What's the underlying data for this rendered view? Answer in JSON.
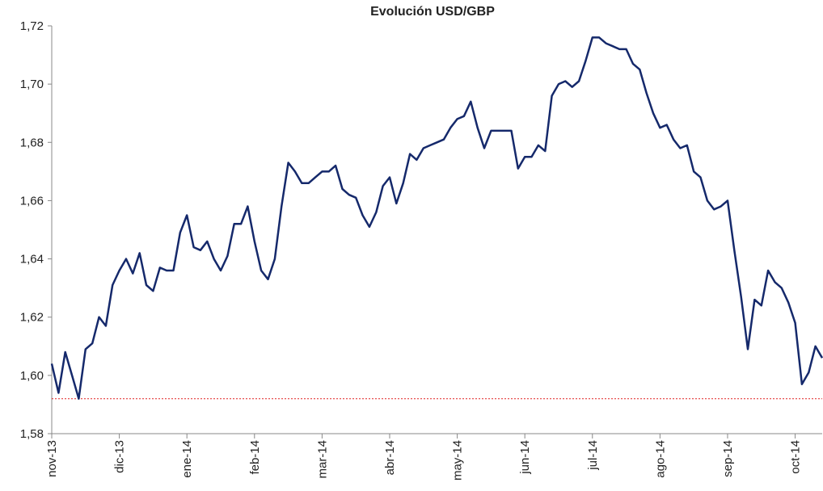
{
  "chart_data": {
    "type": "line",
    "title": "Evolución USD/GBP",
    "categories": [
      "nov-13",
      null,
      null,
      null,
      null,
      null,
      null,
      null,
      null,
      null,
      "dic-13",
      null,
      null,
      null,
      null,
      null,
      null,
      null,
      null,
      null,
      "ene-14",
      null,
      null,
      null,
      null,
      null,
      null,
      null,
      null,
      null,
      "feb-14",
      null,
      null,
      null,
      null,
      null,
      null,
      null,
      null,
      null,
      "mar-14",
      null,
      null,
      null,
      null,
      null,
      null,
      null,
      null,
      null,
      "abr-14",
      null,
      null,
      null,
      null,
      null,
      null,
      null,
      null,
      null,
      "may-14",
      null,
      null,
      null,
      null,
      null,
      null,
      null,
      null,
      null,
      "jun-14",
      null,
      null,
      null,
      null,
      null,
      null,
      null,
      null,
      null,
      "jul-14",
      null,
      null,
      null,
      null,
      null,
      null,
      null,
      null,
      null,
      "ago-14",
      null,
      null,
      null,
      null,
      null,
      null,
      null,
      null,
      null,
      "sep-14",
      null,
      null,
      null,
      null,
      null,
      null,
      null,
      null,
      null,
      "oct-14",
      null,
      null,
      null,
      null
    ],
    "series": [
      {
        "name": "USD/GBP",
        "color": "#15296b",
        "values": [
          1.604,
          1.594,
          1.608,
          1.6,
          1.592,
          1.609,
          1.611,
          1.62,
          1.617,
          1.631,
          1.636,
          1.64,
          1.635,
          1.642,
          1.631,
          1.629,
          1.637,
          1.636,
          1.636,
          1.649,
          1.655,
          1.644,
          1.643,
          1.646,
          1.64,
          1.636,
          1.641,
          1.652,
          1.652,
          1.658,
          1.646,
          1.636,
          1.633,
          1.64,
          1.658,
          1.673,
          1.67,
          1.666,
          1.666,
          1.668,
          1.67,
          1.67,
          1.672,
          1.664,
          1.662,
          1.661,
          1.655,
          1.651,
          1.656,
          1.665,
          1.668,
          1.659,
          1.666,
          1.676,
          1.674,
          1.678,
          1.679,
          1.68,
          1.681,
          1.685,
          1.688,
          1.689,
          1.694,
          1.685,
          1.678,
          1.684,
          1.684,
          1.684,
          1.684,
          1.671,
          1.675,
          1.675,
          1.679,
          1.677,
          1.696,
          1.7,
          1.701,
          1.699,
          1.701,
          1.708,
          1.716,
          1.716,
          1.714,
          1.713,
          1.712,
          1.712,
          1.707,
          1.705,
          1.697,
          1.69,
          1.685,
          1.686,
          1.681,
          1.678,
          1.679,
          1.67,
          1.668,
          1.66,
          1.657,
          1.658,
          1.66,
          1.643,
          1.627,
          1.609,
          1.626,
          1.624,
          1.636,
          1.632,
          1.63,
          1.625,
          1.618,
          1.597,
          1.601,
          1.61,
          1.606
        ]
      }
    ],
    "ylim": [
      1.58,
      1.72
    ],
    "yticks": [
      {
        "value": 1.58,
        "label": "1,58"
      },
      {
        "value": 1.6,
        "label": "1,60"
      },
      {
        "value": 1.62,
        "label": "1,62"
      },
      {
        "value": 1.64,
        "label": "1,64"
      },
      {
        "value": 1.66,
        "label": "1,66"
      },
      {
        "value": 1.68,
        "label": "1,68"
      },
      {
        "value": 1.7,
        "label": "1,70"
      },
      {
        "value": 1.72,
        "label": "1,72"
      }
    ],
    "grid": false,
    "reference_line": {
      "value": 1.592,
      "color": "#e02020"
    }
  }
}
